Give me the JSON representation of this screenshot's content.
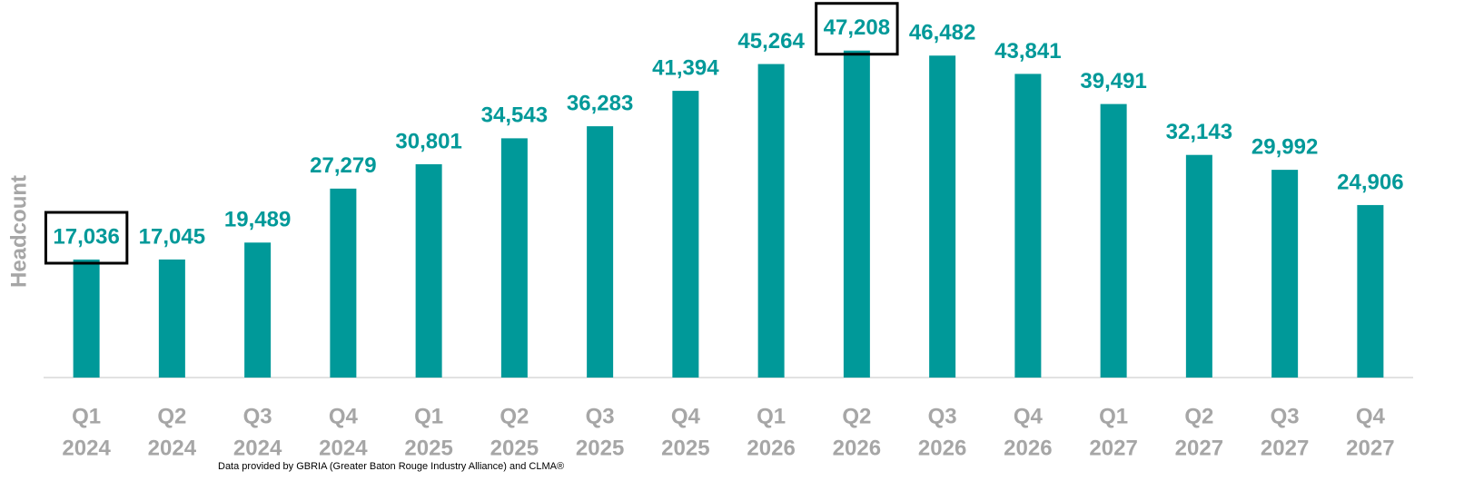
{
  "chart_data": {
    "type": "bar",
    "y_label": "Headcount",
    "footnote": "Data provided by GBRIA (Greater Baton Rouge Industry Alliance) and CLMA®",
    "categories": [
      [
        "Q1",
        "2024"
      ],
      [
        "Q2",
        "2024"
      ],
      [
        "Q3",
        "2024"
      ],
      [
        "Q4",
        "2024"
      ],
      [
        "Q1",
        "2025"
      ],
      [
        "Q2",
        "2025"
      ],
      [
        "Q3",
        "2025"
      ],
      [
        "Q4",
        "2025"
      ],
      [
        "Q1",
        "2026"
      ],
      [
        "Q2",
        "2026"
      ],
      [
        "Q3",
        "2026"
      ],
      [
        "Q4",
        "2026"
      ],
      [
        "Q1",
        "2027"
      ],
      [
        "Q2",
        "2027"
      ],
      [
        "Q3",
        "2027"
      ],
      [
        "Q4",
        "2027"
      ]
    ],
    "values": [
      17036,
      17045,
      19489,
      27279,
      30801,
      34543,
      36283,
      41394,
      45264,
      47208,
      46482,
      43841,
      39491,
      32143,
      29992,
      24906
    ],
    "value_labels": [
      "17,036",
      "17,045",
      "19,489",
      "27,279",
      "30,801",
      "34,543",
      "36,283",
      "41,394",
      "45,264",
      "47,208",
      "46,482",
      "43,841",
      "39,491",
      "32,143",
      "29,992",
      "24,906"
    ],
    "highlight": [
      0,
      9
    ],
    "color": "#009999",
    "ylim": [
      0,
      53200
    ],
    "grid": false
  }
}
